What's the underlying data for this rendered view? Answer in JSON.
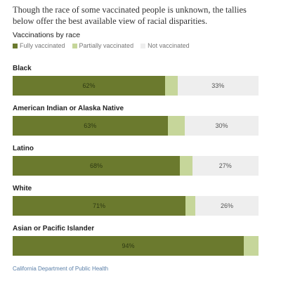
{
  "intro": "Though the race of some vaccinated people is unknown, the tallies below offer the best available view of racial disparities.",
  "source": "California Department of Public Health",
  "chart_data": {
    "type": "bar",
    "orientation": "horizontal",
    "stacked": true,
    "title": "Vaccinations by race",
    "legend_position": "top-left",
    "categories": [
      "Black",
      "American Indian or Alaska Native",
      "Latino",
      "White",
      "Asian or Pacific Islander"
    ],
    "series": [
      {
        "name": "Fully vaccinated",
        "color": "#6b7a2e",
        "values": [
          62,
          63,
          68,
          71,
          94
        ],
        "labels": [
          "62%",
          "63%",
          "68%",
          "71%",
          "94%"
        ]
      },
      {
        "name": "Partially vaccinated",
        "color": "#c6d69a",
        "values": [
          5,
          7,
          5,
          4,
          6
        ],
        "labels": [
          "",
          "",
          "",
          "",
          ""
        ]
      },
      {
        "name": "Not vaccinated",
        "color": "#eeeeee",
        "values": [
          33,
          30,
          27,
          26,
          0
        ],
        "labels": [
          "33%",
          "30%",
          "27%",
          "26%",
          ""
        ]
      }
    ],
    "xlim": [
      0,
      100
    ]
  }
}
